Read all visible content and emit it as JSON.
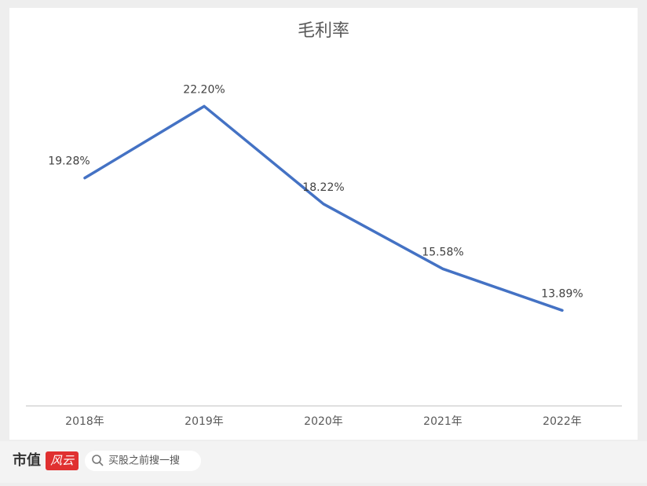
{
  "chart_data": {
    "type": "line",
    "title": "毛利率",
    "categories": [
      "2018年",
      "2019年",
      "2020年",
      "2021年",
      "2022年"
    ],
    "series": [
      {
        "name": "毛利率",
        "color": "#4472c4",
        "values": [
          19.28,
          22.2,
          18.22,
          15.58,
          13.89
        ],
        "value_labels": [
          "19.28%",
          "22.20%",
          "18.22%",
          "15.58%",
          "13.89%"
        ]
      }
    ],
    "ylim": [
      10,
      24
    ]
  },
  "footer": {
    "logo": "市值",
    "logo_mark": "风云",
    "search": "买股之前搜一搜"
  }
}
